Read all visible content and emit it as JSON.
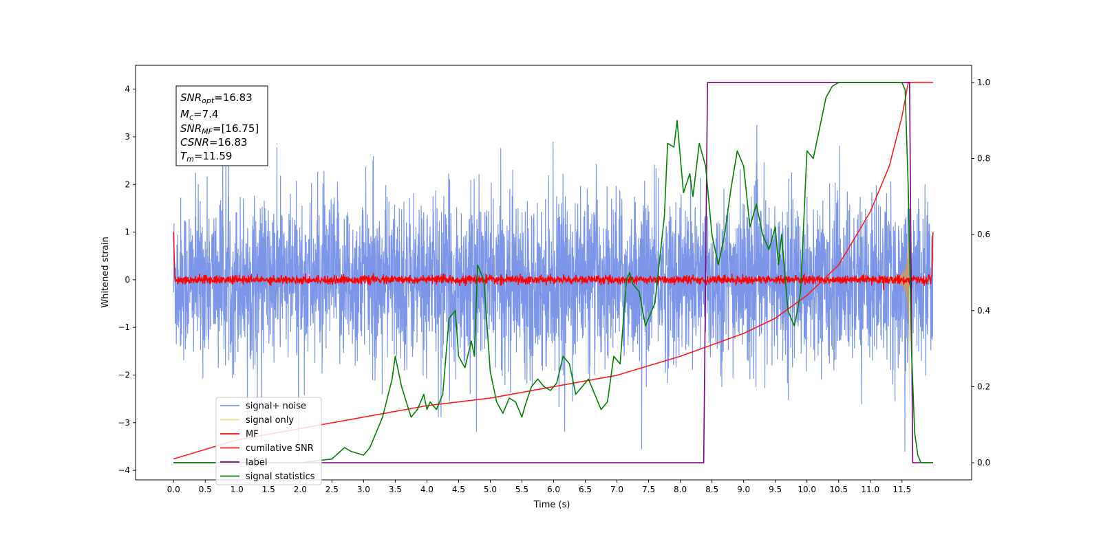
{
  "chart_data": {
    "type": "line",
    "xlabel": "Time (s)",
    "ylabel": "Whitened strain",
    "xlim": [
      -0.6,
      12.6
    ],
    "ylim": [
      -4.2,
      4.5
    ],
    "y2lim": [
      -0.045,
      1.045
    ],
    "x_ticks": [
      "0.0",
      "0.5",
      "1.0",
      "1.5",
      "2.0",
      "2.5",
      "3.0",
      "3.5",
      "4.0",
      "4.5",
      "5.0",
      "5.5",
      "6.0",
      "6.5",
      "7.0",
      "7.5",
      "8.0",
      "8.5",
      "9.0",
      "9.5",
      "10.0",
      "10.5",
      "11.0",
      "11.5"
    ],
    "y_ticks": [
      "4",
      "3",
      "2",
      "1",
      "0",
      "−1",
      "−2",
      "−3",
      "−4"
    ],
    "y2_ticks": [
      "1.0",
      "0.8",
      "0.6",
      "0.4",
      "0.2",
      "0.0"
    ],
    "legend_position": "lower-left",
    "info_box": {
      "snr_opt_label": "SNR",
      "snr_opt_sub": "opt",
      "snr_opt_value": "=16.83",
      "mc_label": "M",
      "mc_sub": "c",
      "mc_value": "=7.4",
      "snr_mf_label": "SNR",
      "snr_mf_sub": "MF",
      "snr_mf_value": "=[16.75]",
      "csnr_label": "CSNR",
      "csnr_value": "=16.83",
      "tm_label": "T",
      "tm_sub": "m",
      "tm_value": "=11.59"
    },
    "series": [
      {
        "name": "signal+ noise",
        "color": "#7b96e8",
        "axis": "left",
        "description_range": [
          0,
          11.99
        ]
      },
      {
        "name": "signal only",
        "color": "#c49a6c",
        "legend_color": "#f5d78a",
        "axis": "left"
      },
      {
        "name": "MF",
        "color": "#ff0000",
        "axis": "left"
      },
      {
        "name": "cumilative SNR",
        "color": "#ff1a1a",
        "axis": "right",
        "x": [
          0.0,
          1.0,
          2.0,
          3.0,
          4.0,
          5.0,
          6.0,
          7.0,
          8.0,
          8.5,
          9.0,
          9.5,
          10.0,
          10.5,
          11.0,
          11.3,
          11.5,
          11.6,
          11.99
        ],
        "y": [
          0.01,
          0.06,
          0.09,
          0.12,
          0.15,
          0.17,
          0.2,
          0.23,
          0.28,
          0.31,
          0.34,
          0.38,
          0.44,
          0.52,
          0.66,
          0.78,
          0.91,
          1.0,
          1.0
        ]
      },
      {
        "name": "label",
        "color": "#800080",
        "axis": "right",
        "x": [
          0.0,
          8.37,
          8.43,
          11.62,
          11.67,
          11.99
        ],
        "y": [
          0.0,
          0.0,
          1.0,
          1.0,
          0.0,
          0.0
        ]
      },
      {
        "name": "signal statistics",
        "color": "#008000",
        "axis": "right",
        "x": [
          0.0,
          2.0,
          2.5,
          2.7,
          2.8,
          3.0,
          3.1,
          3.3,
          3.45,
          3.5,
          3.6,
          3.75,
          3.85,
          3.95,
          4.0,
          4.05,
          4.15,
          4.25,
          4.35,
          4.45,
          4.5,
          4.6,
          4.7,
          4.75,
          4.8,
          4.9,
          5.0,
          5.1,
          5.2,
          5.3,
          5.4,
          5.5,
          5.55,
          5.65,
          5.75,
          5.85,
          5.95,
          6.05,
          6.15,
          6.25,
          6.35,
          6.45,
          6.55,
          6.65,
          6.75,
          6.85,
          6.95,
          7.05,
          7.15,
          7.2,
          7.25,
          7.35,
          7.45,
          7.5,
          7.6,
          7.75,
          7.8,
          7.9,
          7.95,
          8.05,
          8.15,
          8.2,
          8.3,
          8.4,
          8.5,
          8.6,
          8.7,
          8.8,
          8.9,
          9.0,
          9.1,
          9.2,
          9.3,
          9.4,
          9.5,
          9.55,
          9.6,
          9.7,
          9.75,
          9.8,
          9.85,
          9.9,
          10.0,
          10.1,
          10.2,
          10.3,
          10.4,
          10.5,
          10.7,
          11.0,
          11.3,
          11.5,
          11.55,
          11.6,
          11.65,
          11.7,
          11.75,
          11.8,
          11.99
        ],
        "y": [
          0.0,
          0.0,
          0.01,
          0.04,
          0.03,
          0.02,
          0.04,
          0.12,
          0.22,
          0.28,
          0.2,
          0.12,
          0.14,
          0.18,
          0.14,
          0.16,
          0.14,
          0.18,
          0.38,
          0.4,
          0.28,
          0.25,
          0.32,
          0.28,
          0.52,
          0.48,
          0.24,
          0.16,
          0.13,
          0.17,
          0.16,
          0.12,
          0.15,
          0.2,
          0.22,
          0.2,
          0.19,
          0.21,
          0.28,
          0.26,
          0.18,
          0.2,
          0.22,
          0.18,
          0.14,
          0.16,
          0.28,
          0.26,
          0.48,
          0.5,
          0.47,
          0.45,
          0.36,
          0.38,
          0.42,
          0.65,
          0.84,
          0.83,
          0.9,
          0.71,
          0.76,
          0.7,
          0.84,
          0.78,
          0.6,
          0.52,
          0.6,
          0.72,
          0.82,
          0.78,
          0.62,
          0.68,
          0.6,
          0.56,
          0.62,
          0.52,
          0.6,
          0.4,
          0.38,
          0.36,
          0.4,
          0.45,
          0.82,
          0.8,
          0.88,
          0.96,
          0.99,
          1.0,
          1.0,
          1.0,
          1.0,
          1.0,
          0.98,
          0.72,
          0.3,
          0.08,
          0.02,
          0.0,
          0.0
        ]
      }
    ]
  }
}
